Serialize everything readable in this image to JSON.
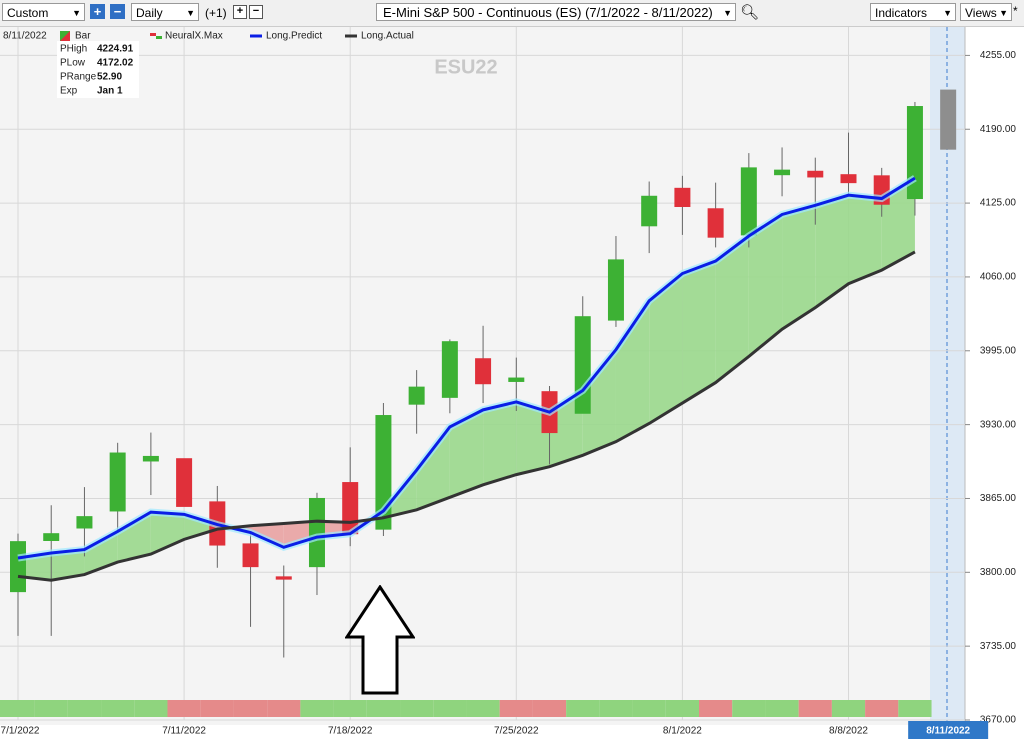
{
  "toolbar": {
    "template": "Custom",
    "period": "Daily",
    "offset": "(+1)",
    "symbol": "E-Mini S&P 500 - Continuous (ES) (7/1/2022 - 8/11/2022)",
    "indicators": "Indicators",
    "views": "Views",
    "star": "*"
  },
  "chart_data": {
    "type": "candlestick",
    "watermark": "ESU22",
    "cursor_date": "8/11/2022",
    "legend": [
      "Bar",
      "NeuralX.Max",
      "Long.Predict",
      "Long.Actual"
    ],
    "info": {
      "labels": [
        "PHigh",
        "PLow",
        "PRange",
        "Exp"
      ],
      "phigh": 4224.91,
      "plow": 4172.02,
      "prange": {
        "value": 52.9,
        "label": "52.90"
      },
      "exp": "Jan 1"
    },
    "categories": [
      "7/1/2022",
      null,
      null,
      null,
      null,
      "7/11/2022",
      null,
      null,
      null,
      null,
      "7/18/2022",
      null,
      null,
      null,
      null,
      "7/25/2022",
      null,
      null,
      null,
      null,
      "8/1/2022",
      null,
      null,
      null,
      null,
      "8/8/2022",
      null,
      null,
      "8/11/2022"
    ],
    "open": [
      3783,
      3828,
      3839,
      3854,
      3898,
      3900,
      3862,
      3825,
      3796,
      3805,
      3879,
      3838,
      3948,
      3954,
      3988,
      3968,
      3959,
      3940,
      4022,
      4105,
      4138,
      4120,
      4097,
      4150,
      4153,
      4150,
      4149,
      4129,
      null
    ],
    "high": [
      3834,
      3859,
      3875,
      3914,
      3923,
      3900,
      3876,
      3834,
      3806,
      3870,
      3910,
      3949,
      3978,
      4005,
      4017,
      3989,
      3964,
      4043,
      4096,
      4144,
      4149,
      4143,
      4169,
      4174,
      4165,
      4187,
      4156,
      4214,
      null
    ],
    "low": [
      3744,
      3744,
      3814,
      3836,
      3868,
      3858,
      3804,
      3752,
      3725,
      3780,
      3823,
      3832,
      3922,
      3940,
      3949,
      3942,
      3895,
      3940,
      4016,
      4081,
      4097,
      4086,
      4086,
      4131,
      4106,
      4133,
      4113,
      4114,
      null
    ],
    "close": [
      3827,
      3834,
      3849,
      3905,
      3902,
      3858,
      3824,
      3805,
      3794,
      3865,
      3834,
      3938,
      3963,
      4003,
      3966,
      3971,
      3923,
      4025,
      4075,
      4131,
      4122,
      4095,
      4156,
      4154,
      4148,
      4143,
      4124,
      4210,
      null
    ],
    "up_color": "#3db134",
    "down_color": "#e0303a",
    "prediction_color": "#8e8e8e",
    "series": [
      {
        "name": "Long.Predict",
        "color": "#0a1ee6",
        "values": [
          3812.6,
          3817,
          3820,
          3836,
          3853,
          3851,
          3842,
          3835,
          3822,
          3831,
          3834,
          3854,
          3890,
          3928,
          3943,
          3950,
          3941,
          3960,
          3996,
          4039,
          4063,
          4074,
          4096,
          4115,
          4123,
          4132,
          4129,
          4147,
          null
        ]
      },
      {
        "name": "Long.Actual",
        "color": "#333333",
        "values": [
          3796.4,
          3793,
          3798,
          3809,
          3816,
          3829,
          3838,
          3841,
          3843,
          3845,
          3844,
          3848,
          3855,
          3866,
          3877,
          3886,
          3893,
          3903,
          3915,
          3931,
          3949,
          3967,
          3990,
          4014,
          4033,
          4054,
          4066,
          4082,
          null
        ]
      }
    ],
    "strip_colors": [
      "#8fd47e",
      "#8fd47e",
      "#8fd47e",
      "#8fd47e",
      "#8fd47e",
      "#e58a8a",
      "#e58a8a",
      "#e58a8a",
      "#e58a8a",
      "#8fd47e",
      "#8fd47e",
      "#8fd47e",
      "#8fd47e",
      "#8fd47e",
      "#8fd47e",
      "#e58a8a",
      "#e58a8a",
      "#8fd47e",
      "#8fd47e",
      "#8fd47e",
      "#8fd47e",
      "#e58a8a",
      "#8fd47e",
      "#8fd47e",
      "#e58a8a",
      "#8fd47e",
      "#e58a8a",
      "#8fd47e"
    ],
    "ylim": [
      3670,
      4280
    ],
    "yticks": [
      {
        "value": 3670,
        "label": "3670.00"
      },
      {
        "value": 3735,
        "label": "3735.00"
      },
      {
        "value": 3800,
        "label": "3800.00"
      },
      {
        "value": 3865,
        "label": "3865.00"
      },
      {
        "value": 3930,
        "label": "3930.00"
      },
      {
        "value": 3995,
        "label": "3995.00"
      },
      {
        "value": 4060,
        "label": "4060.00"
      },
      {
        "value": 4125,
        "label": "4125.00"
      },
      {
        "value": 4190,
        "label": "4190.00"
      },
      {
        "value": 4255,
        "label": "4255.00"
      }
    ],
    "grid": true
  }
}
